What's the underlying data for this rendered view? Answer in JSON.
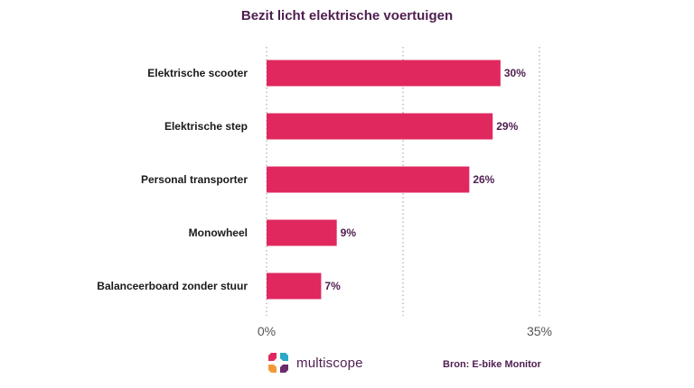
{
  "chart_data": {
    "type": "bar",
    "orientation": "horizontal",
    "title": "Bezit licht elektrische voertuigen",
    "categories": [
      "Elektrische scooter",
      "Elektrische step",
      "Personal transporter",
      "Monowheel",
      "Balanceerboard zonder stuur"
    ],
    "values": [
      30,
      29,
      26,
      9,
      7
    ],
    "value_labels": [
      "30%",
      "29%",
      "26%",
      "9%",
      "7%"
    ],
    "xlim": [
      0,
      35
    ],
    "x_tick_labels": [
      "0%",
      "35%"
    ],
    "grid": "dotted vertical",
    "bar_color": "#e0285f",
    "text_color": "#4e1e4f"
  },
  "footer": {
    "logo_text": "multiscope",
    "logo_icon": "multiscope-logo-icon",
    "source": "Bron: E-bike Monitor"
  }
}
